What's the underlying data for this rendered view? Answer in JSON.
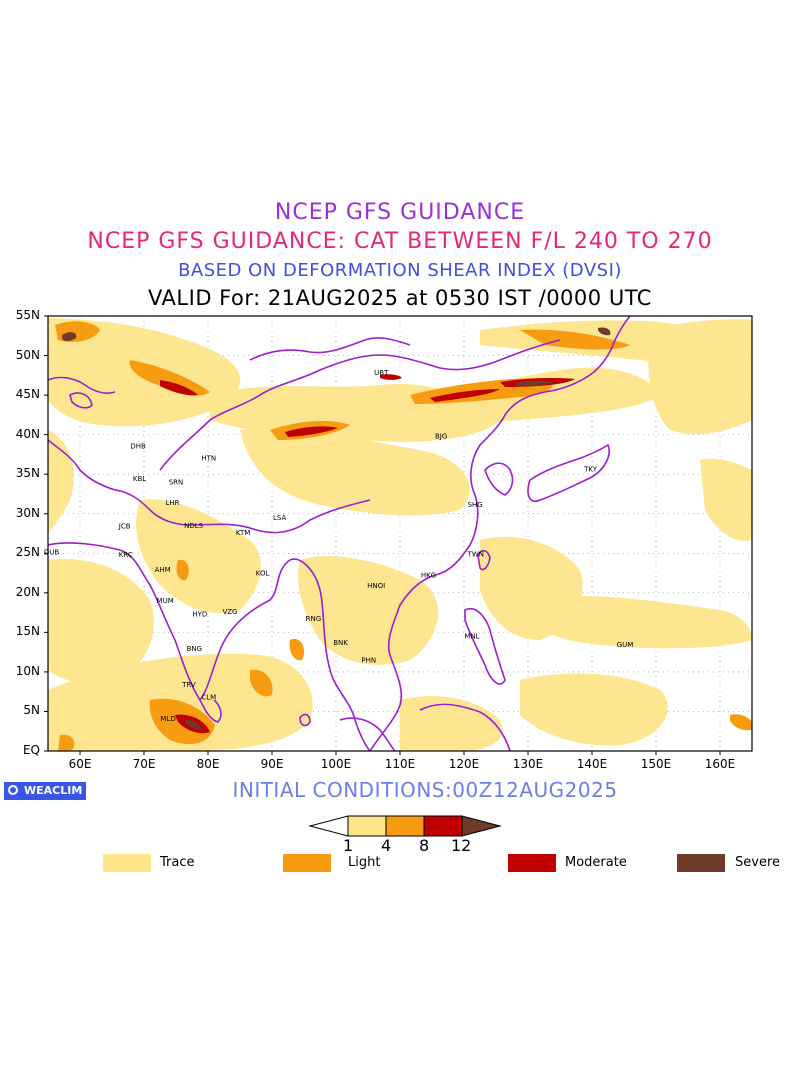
{
  "titles": {
    "line1": "NCEP GFS GUIDANCE",
    "line2": "NCEP GFS GUIDANCE: CAT BETWEEN F/L 240 TO 270",
    "line3": "BASED ON DEFORMATION SHEAR INDEX (DVSI)",
    "line4": "VALID For: 21AUG2025 at 0530 IST /0000 UTC"
  },
  "map": {
    "projection": "lat-lon",
    "lon_range": [
      55,
      165
    ],
    "lat_range": [
      0,
      55
    ],
    "lat_labels": [
      "55N",
      "50N",
      "45N",
      "40N",
      "35N",
      "30N",
      "25N",
      "20N",
      "15N",
      "10N",
      "5N",
      "EQ"
    ],
    "lon_labels": [
      "60E",
      "70E",
      "80E",
      "90E",
      "100E",
      "110E",
      "120E",
      "130E",
      "140E",
      "150E",
      "160E"
    ],
    "colors": {
      "border": "#9b1fd0",
      "trace": "#fde58a",
      "light": "#f79b10",
      "moderate": "#c00000",
      "severe": "#6e3b2a"
    },
    "stations": [
      {
        "code": "UBT",
        "lon": 106.9,
        "lat": 47.9
      },
      {
        "code": "BJG",
        "lon": 116.4,
        "lat": 39.9
      },
      {
        "code": "DHB",
        "lon": 68.8,
        "lat": 38.6
      },
      {
        "code": "HTN",
        "lon": 79.9,
        "lat": 37.1
      },
      {
        "code": "KBL",
        "lon": 69.2,
        "lat": 34.5
      },
      {
        "code": "SRN",
        "lon": 74.8,
        "lat": 34.1
      },
      {
        "code": "LHR",
        "lon": 74.3,
        "lat": 31.5
      },
      {
        "code": "JCB",
        "lon": 67.0,
        "lat": 28.5
      },
      {
        "code": "NDLS",
        "lon": 77.2,
        "lat": 28.6
      },
      {
        "code": "KTM",
        "lon": 85.3,
        "lat": 27.7
      },
      {
        "code": "LSA",
        "lon": 91.1,
        "lat": 29.6
      },
      {
        "code": "SHG",
        "lon": 121.5,
        "lat": 31.2
      },
      {
        "code": "TKY",
        "lon": 139.7,
        "lat": 35.7
      },
      {
        "code": "DUB",
        "lon": 55.3,
        "lat": 25.2
      },
      {
        "code": "KRC",
        "lon": 67.0,
        "lat": 24.9
      },
      {
        "code": "AHM",
        "lon": 72.6,
        "lat": 23.0
      },
      {
        "code": "KOL",
        "lon": 88.4,
        "lat": 22.6
      },
      {
        "code": "TWN",
        "lon": 121.5,
        "lat": 25.0
      },
      {
        "code": "HNOI",
        "lon": 105.8,
        "lat": 21.0
      },
      {
        "code": "HKG",
        "lon": 114.2,
        "lat": 22.3
      },
      {
        "code": "MUM",
        "lon": 72.9,
        "lat": 19.1
      },
      {
        "code": "HYD",
        "lon": 78.5,
        "lat": 17.4
      },
      {
        "code": "VZG",
        "lon": 83.2,
        "lat": 17.7
      },
      {
        "code": "RNG",
        "lon": 96.2,
        "lat": 16.8
      },
      {
        "code": "BNK",
        "lon": 100.5,
        "lat": 13.8
      },
      {
        "code": "MNL",
        "lon": 121.0,
        "lat": 14.6
      },
      {
        "code": "GUM",
        "lon": 144.8,
        "lat": 13.5
      },
      {
        "code": "BNG",
        "lon": 77.6,
        "lat": 13.0
      },
      {
        "code": "PHN",
        "lon": 104.9,
        "lat": 11.6
      },
      {
        "code": "TRV",
        "lon": 76.9,
        "lat": 8.5
      },
      {
        "code": "CLM",
        "lon": 79.9,
        "lat": 6.9
      },
      {
        "code": "MLD",
        "lon": 73.5,
        "lat": 4.2
      }
    ]
  },
  "branding": {
    "label": "WEACLIM"
  },
  "initial_conditions": "INITIAL CONDITIONS:00Z12AUG2025",
  "colorbar": {
    "levels": [
      "1",
      "4",
      "8",
      "12"
    ]
  },
  "legend": [
    {
      "label": "Trace",
      "color": "#fde58a"
    },
    {
      "label": "Light",
      "color": "#f79b10"
    },
    {
      "label": "Moderate",
      "color": "#c00000"
    },
    {
      "label": "Severe",
      "color": "#6e3b2a"
    }
  ]
}
